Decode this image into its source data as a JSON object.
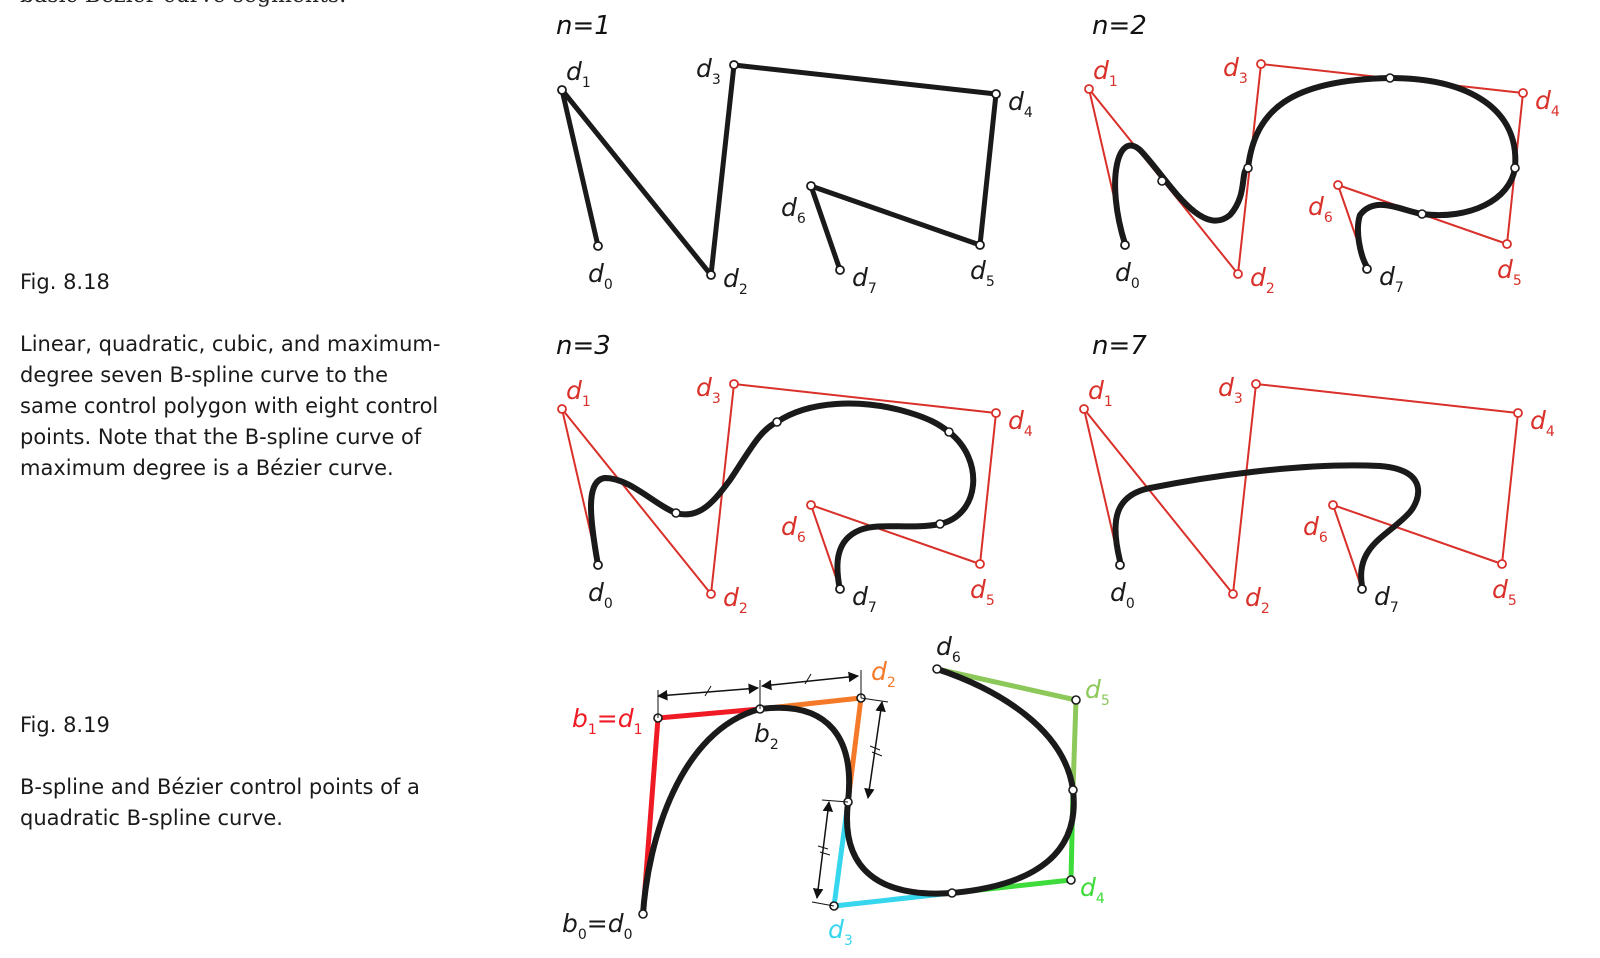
{
  "page": {
    "top_fragment": "basic Bézier curve segments.",
    "fig_818": {
      "number": "Fig. 8.18",
      "text": "Linear, quadratic, cubic, and maximum-\ndegree seven B-spline curve to the\nsame control polygon with eight control\npoints. Note that the B-spline curve of\nmaximum degree is a Bézier curve."
    },
    "fig_819": {
      "number": "Fig. 8.19",
      "text": "B-spline and Bézier control points of a\nquadratic B-spline curve."
    }
  },
  "panels": [
    {
      "title": "n=1"
    },
    {
      "title": "n=2"
    },
    {
      "title": "n=3"
    },
    {
      "title": "n=7"
    }
  ],
  "point_labels": {
    "d0": "d",
    "d1": "d",
    "d2": "d",
    "d3": "d",
    "d4": "d",
    "d5": "d",
    "d6": "d",
    "d7": "d",
    "sub0": "0",
    "sub1": "1",
    "sub2": "2",
    "sub3": "3",
    "sub4": "4",
    "sub5": "5",
    "sub6": "6",
    "sub7": "7"
  },
  "fig819_labels": {
    "b1_eq_d1": [
      "b",
      "1",
      "=d",
      "1"
    ],
    "b0_eq_d0": [
      "b",
      "0",
      "=d",
      "0"
    ],
    "b2": [
      "b",
      "2"
    ],
    "d2": [
      "d",
      "2"
    ],
    "d3": [
      "d",
      "3"
    ],
    "d4": [
      "d",
      "4"
    ],
    "d5": [
      "d",
      "5"
    ],
    "d6": [
      "d",
      "6"
    ]
  },
  "colors": {
    "curve": "#1a1a1a",
    "polygon_red": "#d9302a",
    "seg_red": "#f01a24",
    "seg_orange": "#f47a2a",
    "seg_cyan": "#35d6ee",
    "seg_green": "#3ddc3a",
    "seg_lightgreen": "#8cc85a"
  }
}
